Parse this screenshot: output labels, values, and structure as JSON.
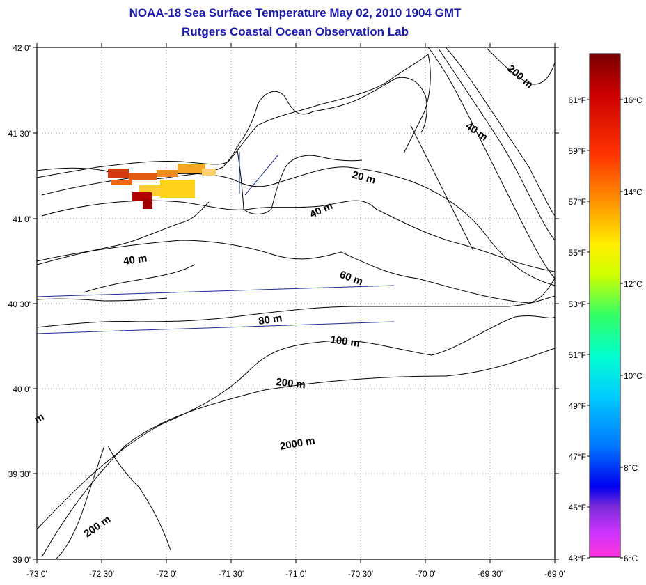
{
  "title_line1": "NOAA-18 Sea Surface Temperature May 02, 2010 1904 GMT",
  "title_line2": "Rutgers Coastal Ocean Observation Lab",
  "map": {
    "longitude_ticks": [
      "-73 0'",
      "-72 30'",
      "-72 0'",
      "-71 30'",
      "-71 0'",
      "-70 30'",
      "-70 0'",
      "-69 30'",
      "-69 0'"
    ],
    "latitude_ticks": [
      "42 0'",
      "41 30'",
      "41 0'",
      "40 30'",
      "40 0'",
      "39 30'",
      "39 0'"
    ],
    "lon_range": [
      -73,
      -69
    ],
    "lat_range": [
      39,
      42
    ],
    "grid": "dotted",
    "contour_labels": [
      "200 m",
      "40 m",
      "20 m",
      "40 m",
      "40 m",
      "60 m",
      "80 m",
      "100 m",
      "200 m",
      "2000 m",
      "200 m",
      "m"
    ]
  },
  "colorbar": {
    "fahrenheit_labels": [
      "61°F",
      "59°F",
      "57°F",
      "55°F",
      "53°F",
      "51°F",
      "49°F",
      "47°F",
      "45°F",
      "43°F"
    ],
    "celsius_labels": [
      "16°C",
      "14°C",
      "12°C",
      "10°C",
      "8°C",
      "6°C"
    ],
    "colors": [
      "#7a0000",
      "#d40000",
      "#ff4500",
      "#ff9900",
      "#ffdd00",
      "#ccff00",
      "#33ff66",
      "#00ffcc",
      "#00ccff",
      "#0077ff",
      "#0000ee",
      "#7a2bd8",
      "#cc33ff",
      "#ff33dd"
    ],
    "range_c": [
      6,
      17
    ]
  }
}
